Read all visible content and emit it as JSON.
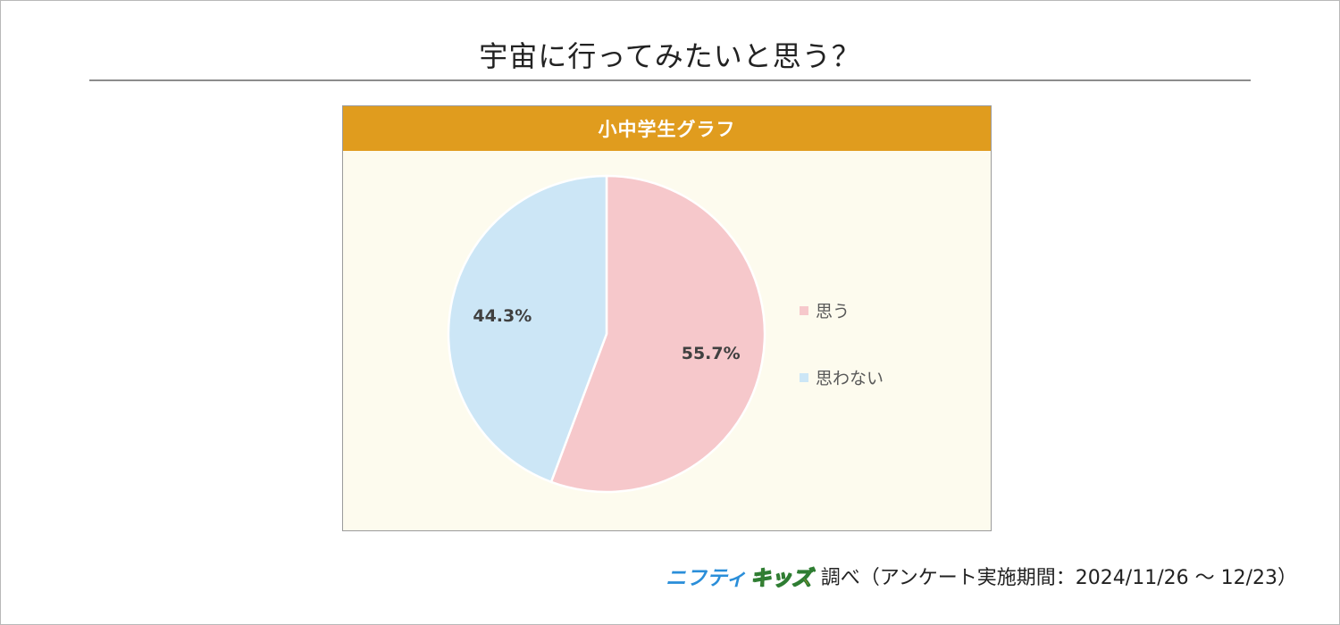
{
  "title": "宇宙に行ってみたいと思う？",
  "panel": {
    "header": "小中学生グラフ"
  },
  "chart_data": {
    "type": "pie",
    "title": "小中学生グラフ",
    "slices": [
      {
        "label": "思う",
        "value": 55.7,
        "display": "55.7%",
        "color": "#f6c8cb"
      },
      {
        "label": "思わない",
        "value": 44.3,
        "display": "44.3%",
        "color": "#cce6f6"
      }
    ],
    "start": "12 o'clock",
    "direction": "clockwise",
    "legend_position": "right"
  },
  "footer": {
    "logo_part1": "ニフティ",
    "logo_part2": "キッズ",
    "text": "調べ（アンケート実施期間：2024/11/26 ～ 12/23）"
  }
}
